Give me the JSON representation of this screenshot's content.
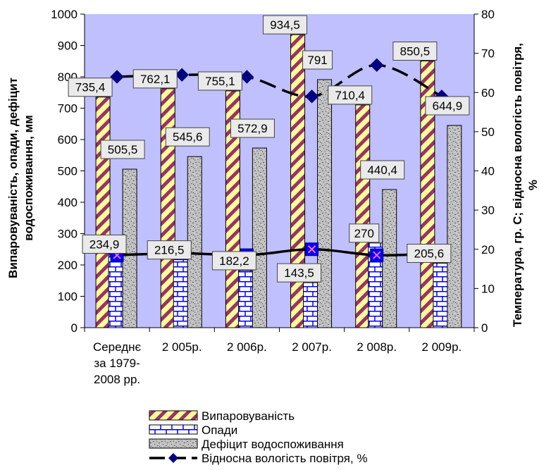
{
  "chart_data": {
    "type": "bar",
    "categories": [
      [
        "Середнє",
        "за 1979-",
        "2008 рр."
      ],
      [
        "2 005р."
      ],
      [
        "2 006р."
      ],
      [
        "2 007р."
      ],
      [
        "2 008р."
      ],
      [
        "2 009р."
      ]
    ],
    "series": [
      {
        "name": "Випаровуваність",
        "type": "bar",
        "axis": "left",
        "values": [
          735.4,
          762.1,
          755.1,
          934.5,
          710.4,
          850.5
        ],
        "labels": [
          "735,4",
          "762,1",
          "755,1",
          "934,5",
          "710,4",
          "850,5"
        ],
        "pattern": "diagonal-stripes",
        "colors": {
          "fill": "#ffff99",
          "stripe": "#993366"
        }
      },
      {
        "name": "Опади",
        "type": "bar",
        "axis": "left",
        "values": [
          234.9,
          216.5,
          182.2,
          143.5,
          270,
          205.6
        ],
        "labels": [
          "234,9",
          "216,5",
          "182,2",
          "143,5",
          "270",
          "205,6"
        ],
        "pattern": "bricks",
        "colors": {
          "fill": "#ffffff",
          "brick": "#0000ff"
        }
      },
      {
        "name": "Дефіцит водоспоживання",
        "type": "bar",
        "axis": "left",
        "values": [
          505.5,
          545.6,
          572.9,
          791,
          440.4,
          644.9
        ],
        "labels": [
          "505,5",
          "545,6",
          "572,9",
          "791",
          "440,4",
          "644,9"
        ],
        "pattern": "granite",
        "colors": {
          "fill": "#c0c0c0",
          "speckle": "#666666"
        }
      },
      {
        "name": "Відносна вологість повітря, %",
        "type": "line",
        "axis": "right",
        "smooth": true,
        "values": [
          64,
          64.5,
          64,
          59,
          67,
          59
        ],
        "colors": {
          "line": "#000000",
          "marker": "#000080"
        }
      },
      {
        "type": "line",
        "axis": "right",
        "smooth": true,
        "values": [
          18.5,
          19,
          18.5,
          20,
          18.5,
          19
        ],
        "colors": {
          "line": "#000000",
          "marker": "#0000ff"
        }
      }
    ],
    "ylabel": [
      "Випаровуваність, опади, дефіцит",
      "водоспоживання, мм"
    ],
    "y2label": [
      "Температура, гр. С; відносна вологість повітря,",
      "%"
    ],
    "ylim": [
      0,
      1000
    ],
    "yticks": [
      0,
      100,
      200,
      300,
      400,
      500,
      600,
      700,
      800,
      900,
      1000
    ],
    "y2lim": [
      0,
      80
    ],
    "y2ticks": [
      0,
      10,
      20,
      30,
      40,
      50,
      60,
      70,
      80
    ],
    "plot_background": "#c0c0ff",
    "grid": false,
    "legend_position": "bottom"
  }
}
